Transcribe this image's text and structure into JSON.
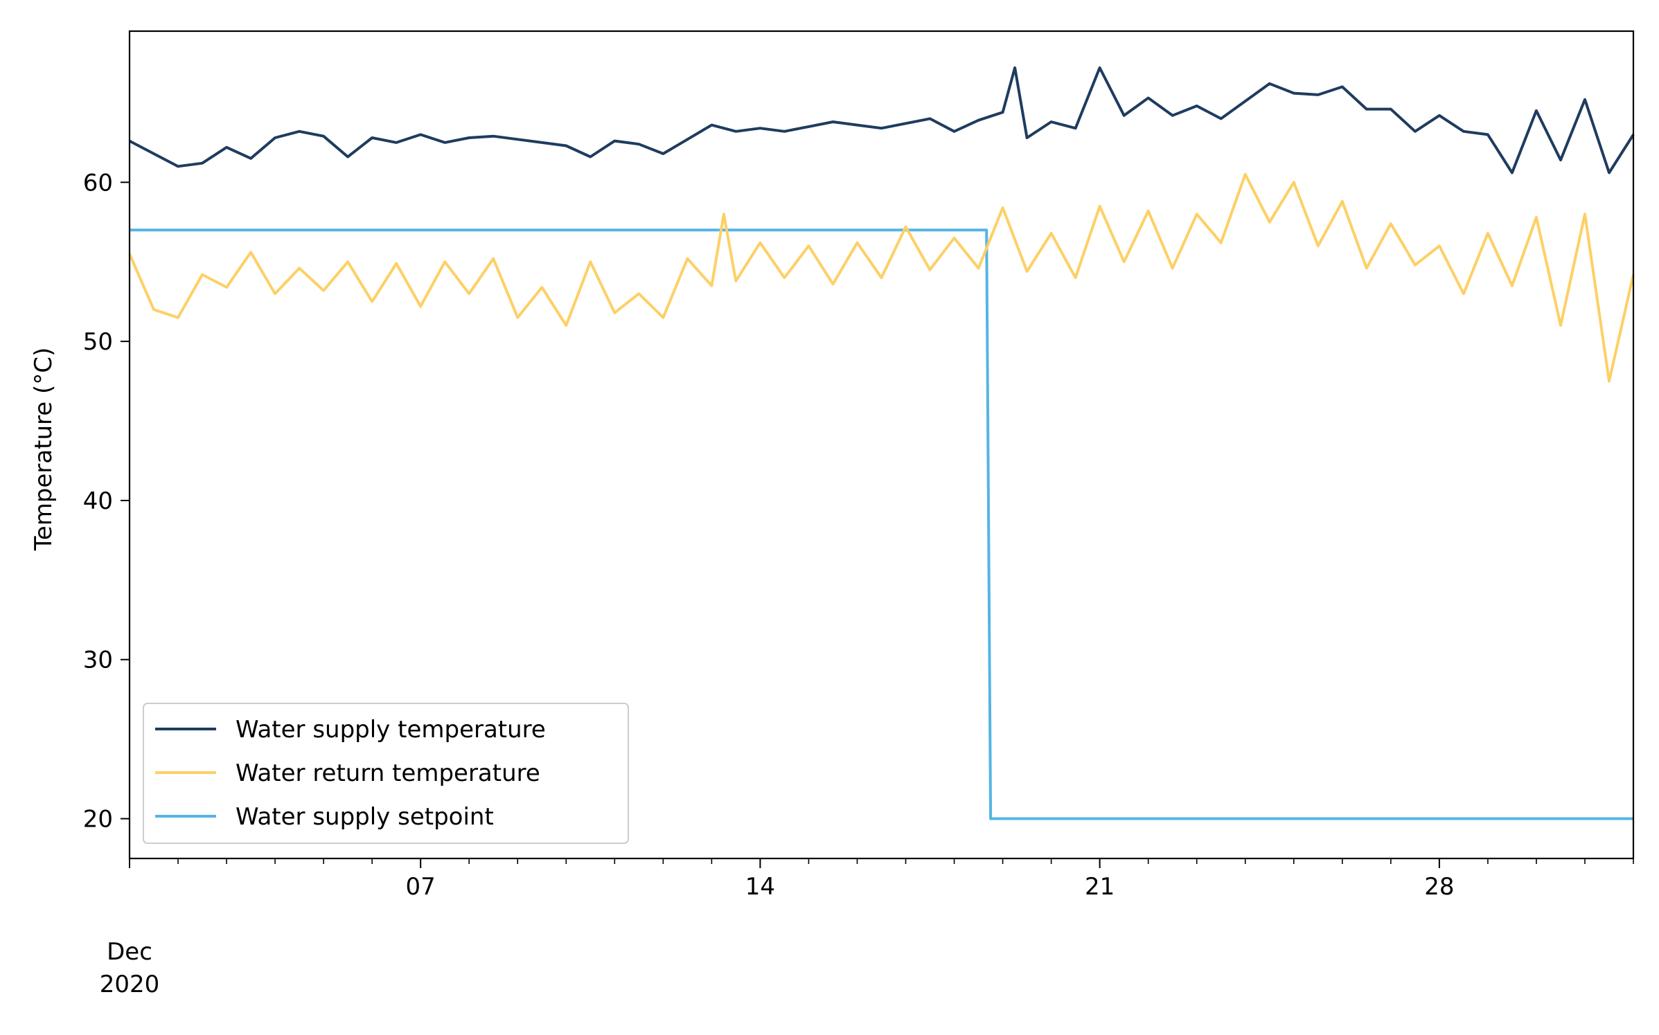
{
  "chart_data": {
    "type": "line",
    "title": "",
    "xlabel": "",
    "ylabel": "Temperature (°C)",
    "x_axis": {
      "type": "date",
      "start": "2020-12-01",
      "end": "2021-01-01",
      "major_ticks": [
        {
          "date": "2020-12-07",
          "label": "07"
        },
        {
          "date": "2020-12-14",
          "label": "14"
        },
        {
          "date": "2020-12-21",
          "label": "21"
        },
        {
          "date": "2020-12-28",
          "label": "28"
        }
      ],
      "start_label": [
        "Dec",
        "2020"
      ],
      "minor_ticks": "daily"
    },
    "ylim": [
      17.5,
      69.5
    ],
    "y_ticks": [
      20,
      30,
      40,
      50,
      60
    ],
    "grid": false,
    "legend": {
      "location": "lower-left"
    },
    "colors": {
      "supply": "#1f3c5f",
      "return": "#fdd066",
      "setpoint": "#54b4e4"
    },
    "series": [
      {
        "name": "Water supply temperature",
        "color": "#1f3c5f",
        "points": [
          [
            "2020-12-01 00:00",
            62.6
          ],
          [
            "2020-12-01 12:00",
            61.8
          ],
          [
            "2020-12-02 00:00",
            61.0
          ],
          [
            "2020-12-02 12:00",
            61.2
          ],
          [
            "2020-12-03 00:00",
            62.2
          ],
          [
            "2020-12-03 12:00",
            61.5
          ],
          [
            "2020-12-04 00:00",
            62.8
          ],
          [
            "2020-12-04 12:00",
            63.2
          ],
          [
            "2020-12-05 00:00",
            62.9
          ],
          [
            "2020-12-05 12:00",
            61.6
          ],
          [
            "2020-12-06 00:00",
            62.8
          ],
          [
            "2020-12-06 12:00",
            62.5
          ],
          [
            "2020-12-07 00:00",
            63.0
          ],
          [
            "2020-12-07 12:00",
            62.5
          ],
          [
            "2020-12-08 00:00",
            62.8
          ],
          [
            "2020-12-08 12:00",
            62.9
          ],
          [
            "2020-12-09 00:00",
            62.7
          ],
          [
            "2020-12-09 12:00",
            62.5
          ],
          [
            "2020-12-10 00:00",
            62.3
          ],
          [
            "2020-12-10 12:00",
            61.6
          ],
          [
            "2020-12-11 00:00",
            62.6
          ],
          [
            "2020-12-11 12:00",
            62.4
          ],
          [
            "2020-12-12 00:00",
            61.8
          ],
          [
            "2020-12-12 12:00",
            62.7
          ],
          [
            "2020-12-13 00:00",
            63.6
          ],
          [
            "2020-12-13 12:00",
            63.2
          ],
          [
            "2020-12-14 00:00",
            63.4
          ],
          [
            "2020-12-14 12:00",
            63.2
          ],
          [
            "2020-12-15 00:00",
            63.5
          ],
          [
            "2020-12-15 12:00",
            63.8
          ],
          [
            "2020-12-16 00:00",
            63.6
          ],
          [
            "2020-12-16 12:00",
            63.4
          ],
          [
            "2020-12-17 00:00",
            63.7
          ],
          [
            "2020-12-17 12:00",
            64.0
          ],
          [
            "2020-12-18 00:00",
            63.2
          ],
          [
            "2020-12-18 12:00",
            63.9
          ],
          [
            "2020-12-19 00:00",
            64.4
          ],
          [
            "2020-12-19 06:00",
            67.2
          ],
          [
            "2020-12-19 12:00",
            62.8
          ],
          [
            "2020-12-20 00:00",
            63.8
          ],
          [
            "2020-12-20 12:00",
            63.4
          ],
          [
            "2020-12-21 00:00",
            67.2
          ],
          [
            "2020-12-21 12:00",
            64.2
          ],
          [
            "2020-12-22 00:00",
            65.3
          ],
          [
            "2020-12-22 12:00",
            64.2
          ],
          [
            "2020-12-23 00:00",
            64.8
          ],
          [
            "2020-12-23 12:00",
            64.0
          ],
          [
            "2020-12-24 00:00",
            65.1
          ],
          [
            "2020-12-24 12:00",
            66.2
          ],
          [
            "2020-12-25 00:00",
            65.6
          ],
          [
            "2020-12-25 12:00",
            65.5
          ],
          [
            "2020-12-26 00:00",
            66.0
          ],
          [
            "2020-12-26 12:00",
            64.6
          ],
          [
            "2020-12-27 00:00",
            64.6
          ],
          [
            "2020-12-27 12:00",
            63.2
          ],
          [
            "2020-12-28 00:00",
            64.2
          ],
          [
            "2020-12-28 12:00",
            63.2
          ],
          [
            "2020-12-29 00:00",
            63.0
          ],
          [
            "2020-12-29 12:00",
            60.6
          ],
          [
            "2020-12-30 00:00",
            64.5
          ],
          [
            "2020-12-30 12:00",
            61.4
          ],
          [
            "2020-12-31 00:00",
            65.2
          ],
          [
            "2020-12-31 12:00",
            60.6
          ],
          [
            "2021-01-01 00:00",
            63.0
          ]
        ]
      },
      {
        "name": "Water return temperature",
        "color": "#fdd066",
        "points": [
          [
            "2020-12-01 00:00",
            55.5
          ],
          [
            "2020-12-01 12:00",
            52.0
          ],
          [
            "2020-12-02 00:00",
            51.5
          ],
          [
            "2020-12-02 12:00",
            54.2
          ],
          [
            "2020-12-03 00:00",
            53.4
          ],
          [
            "2020-12-03 12:00",
            55.6
          ],
          [
            "2020-12-04 00:00",
            53.0
          ],
          [
            "2020-12-04 12:00",
            54.6
          ],
          [
            "2020-12-05 00:00",
            53.2
          ],
          [
            "2020-12-05 12:00",
            55.0
          ],
          [
            "2020-12-06 00:00",
            52.5
          ],
          [
            "2020-12-06 12:00",
            54.9
          ],
          [
            "2020-12-07 00:00",
            52.2
          ],
          [
            "2020-12-07 12:00",
            55.0
          ],
          [
            "2020-12-08 00:00",
            53.0
          ],
          [
            "2020-12-08 12:00",
            55.2
          ],
          [
            "2020-12-09 00:00",
            51.5
          ],
          [
            "2020-12-09 12:00",
            53.4
          ],
          [
            "2020-12-10 00:00",
            51.0
          ],
          [
            "2020-12-10 12:00",
            55.0
          ],
          [
            "2020-12-11 00:00",
            51.8
          ],
          [
            "2020-12-11 12:00",
            53.0
          ],
          [
            "2020-12-12 00:00",
            51.5
          ],
          [
            "2020-12-12 12:00",
            55.2
          ],
          [
            "2020-12-13 00:00",
            53.5
          ],
          [
            "2020-12-13 06:00",
            58.0
          ],
          [
            "2020-12-13 12:00",
            53.8
          ],
          [
            "2020-12-14 00:00",
            56.2
          ],
          [
            "2020-12-14 12:00",
            54.0
          ],
          [
            "2020-12-15 00:00",
            56.0
          ],
          [
            "2020-12-15 12:00",
            53.6
          ],
          [
            "2020-12-16 00:00",
            56.2
          ],
          [
            "2020-12-16 12:00",
            54.0
          ],
          [
            "2020-12-17 00:00",
            57.2
          ],
          [
            "2020-12-17 12:00",
            54.5
          ],
          [
            "2020-12-18 00:00",
            56.5
          ],
          [
            "2020-12-18 12:00",
            54.6
          ],
          [
            "2020-12-19 00:00",
            58.4
          ],
          [
            "2020-12-19 12:00",
            54.4
          ],
          [
            "2020-12-20 00:00",
            56.8
          ],
          [
            "2020-12-20 12:00",
            54.0
          ],
          [
            "2020-12-21 00:00",
            58.5
          ],
          [
            "2020-12-21 12:00",
            55.0
          ],
          [
            "2020-12-22 00:00",
            58.2
          ],
          [
            "2020-12-22 12:00",
            54.6
          ],
          [
            "2020-12-23 00:00",
            58.0
          ],
          [
            "2020-12-23 12:00",
            56.2
          ],
          [
            "2020-12-24 00:00",
            60.5
          ],
          [
            "2020-12-24 12:00",
            57.5
          ],
          [
            "2020-12-25 00:00",
            60.0
          ],
          [
            "2020-12-25 12:00",
            56.0
          ],
          [
            "2020-12-26 00:00",
            58.8
          ],
          [
            "2020-12-26 12:00",
            54.6
          ],
          [
            "2020-12-27 00:00",
            57.4
          ],
          [
            "2020-12-27 12:00",
            54.8
          ],
          [
            "2020-12-28 00:00",
            56.0
          ],
          [
            "2020-12-28 12:00",
            53.0
          ],
          [
            "2020-12-29 00:00",
            56.8
          ],
          [
            "2020-12-29 12:00",
            53.5
          ],
          [
            "2020-12-30 00:00",
            57.8
          ],
          [
            "2020-12-30 12:00",
            51.0
          ],
          [
            "2020-12-31 00:00",
            58.0
          ],
          [
            "2020-12-31 12:00",
            47.5
          ],
          [
            "2021-01-01 00:00",
            54.2
          ]
        ]
      },
      {
        "name": "Water supply setpoint",
        "color": "#54b4e4",
        "points": [
          [
            "2020-12-01 00:00",
            57.0
          ],
          [
            "2020-12-18 16:00",
            57.0
          ],
          [
            "2020-12-18 18:00",
            20.0
          ],
          [
            "2021-01-01 00:00",
            20.0
          ]
        ]
      }
    ]
  }
}
